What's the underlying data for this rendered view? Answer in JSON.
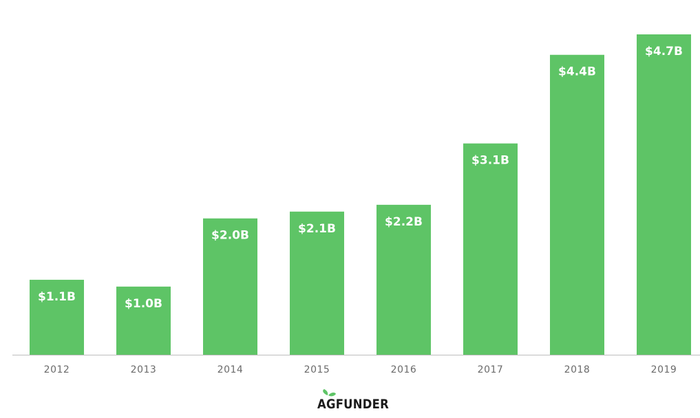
{
  "colors": {
    "bar": "#5ec466",
    "baseline": "#bdbdbd",
    "logo_leaf": "#5ec466",
    "logo_text": "#1b1b1b"
  },
  "logo": {
    "text": "AgFUNDER",
    "leaf_icon": "leaf-icon"
  },
  "chart_data": {
    "type": "bar",
    "categories": [
      "2012",
      "2013",
      "2014",
      "2015",
      "2016",
      "2017",
      "2018",
      "2019"
    ],
    "values": [
      1.1,
      1.0,
      2.0,
      2.1,
      2.2,
      3.1,
      4.4,
      4.7
    ],
    "value_labels": [
      "$1.1B",
      "$1.0B",
      "$2.0B",
      "$2.1B",
      "$2.2B",
      "$3.1B",
      "$4.4B",
      "$4.7B"
    ],
    "title": "",
    "xlabel": "",
    "ylabel": "",
    "ylim": [
      0,
      4.7
    ],
    "grid": false,
    "legend": "none",
    "y_axis_visible": false
  }
}
